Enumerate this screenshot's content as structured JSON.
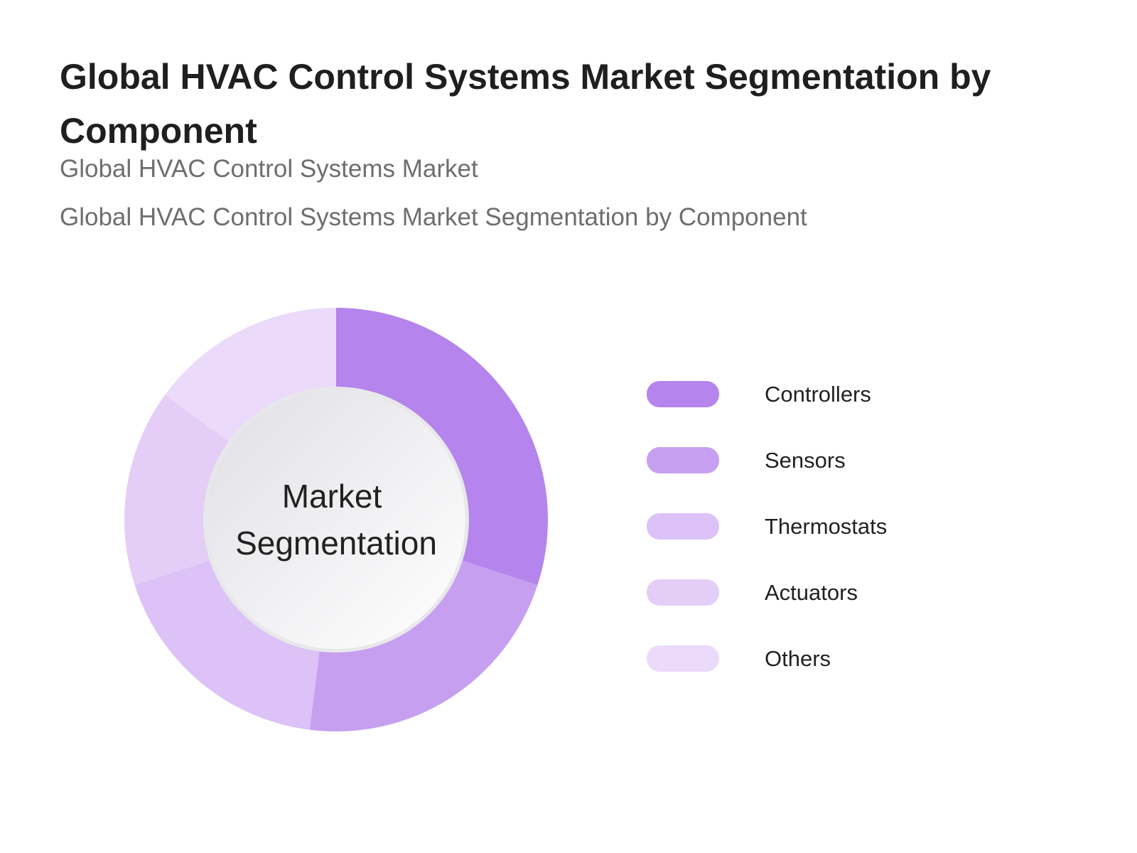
{
  "chart_data": {
    "type": "pie",
    "variant": "donut",
    "title": "Global HVAC Control Systems Market Segmentation by Component",
    "subtitle": "Global HVAC Control Systems Market",
    "description": "Global HVAC Control Systems Market Segmentation by Component",
    "center_label": [
      "Market",
      "Segmentation"
    ],
    "legend_position": "right",
    "categories": [
      "Controllers",
      "Sensors",
      "Thermostats",
      "Actuators",
      "Others"
    ],
    "values": [
      30,
      22,
      18,
      15,
      15
    ],
    "colors": [
      "#b584ec",
      "#c79ff0",
      "#dcc2f7",
      "#e4cdf7",
      "#ebdafa"
    ]
  }
}
